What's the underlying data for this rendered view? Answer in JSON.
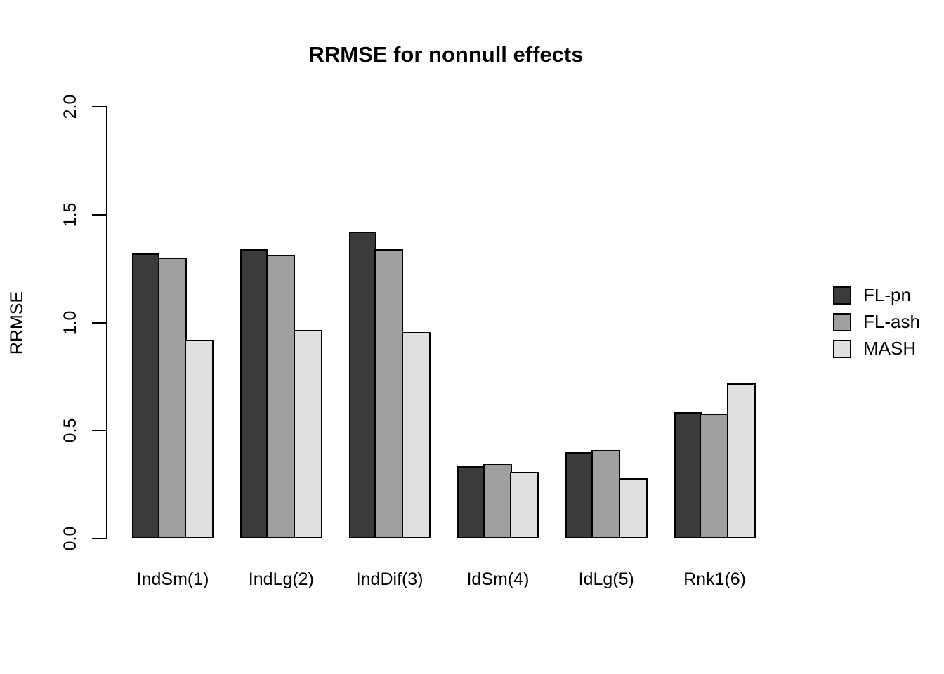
{
  "chart_data": {
    "type": "bar",
    "title": "RRMSE for nonnull effects",
    "xlabel": "",
    "ylabel": "RRMSE",
    "categories": [
      "IndSm(1)",
      "IndLg(2)",
      "IndDif(3)",
      "IdSm(4)",
      "IdLg(5)",
      "Rnk1(6)"
    ],
    "series": [
      {
        "name": "FL-pn",
        "color": "#3B3B3B",
        "values": [
          1.32,
          1.34,
          1.42,
          0.335,
          0.4,
          0.585
        ]
      },
      {
        "name": "FL-ash",
        "color": "#A0A0A0",
        "values": [
          1.3,
          1.315,
          1.34,
          0.345,
          0.41,
          0.58
        ]
      },
      {
        "name": "MASH",
        "color": "#E0E0E0",
        "values": [
          0.92,
          0.965,
          0.955,
          0.31,
          0.28,
          0.72
        ]
      }
    ],
    "ylim": [
      0.0,
      2.0
    ],
    "yticks": [
      0.0,
      0.5,
      1.0,
      1.5,
      2.0
    ],
    "ytick_labels": [
      "0.0",
      "0.5",
      "1.0",
      "1.5",
      "2.0"
    ],
    "grid": false,
    "legend_position": "right",
    "bar_border_color": "#000000",
    "background_color": "#FFFFFF"
  }
}
